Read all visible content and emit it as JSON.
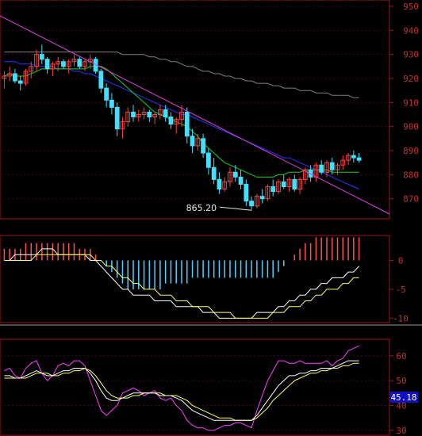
{
  "colors": {
    "background": "#000000",
    "frame": "#a01818",
    "axis_text": "#c83030",
    "candle_up": "#ff4040",
    "candle_down": "#40e0ff",
    "trendline": "#e040e0",
    "ma_short": "#19d219",
    "ma_mid": "#2a36ff",
    "ma_long": "#808080",
    "macd_pos": "#ff5050",
    "macd_neg": "#50d0ff",
    "macd_line1": "#ffffff",
    "macd_line2": "#ffff60",
    "kdj_k": "#ffffff",
    "kdj_d": "#ffff60",
    "kdj_j": "#ff40ff",
    "badge_bg": "#1010c0"
  },
  "price_panel": {
    "y_ticks": [
      "950",
      "940",
      "930",
      "920",
      "910",
      "900",
      "890",
      "880",
      "870"
    ],
    "low_marker_label": "865.20",
    "ylim": [
      860,
      950
    ]
  },
  "macd_panel": {
    "y_ticks": [
      "0",
      "-5",
      "-10"
    ]
  },
  "kdj_panel": {
    "y_ticks": [
      "60",
      "50",
      "40",
      "30"
    ],
    "current_value": "45.18"
  },
  "chart_data": {
    "type": "candlestick",
    "ylabel": "",
    "candles": [
      [
        920,
        923,
        916,
        921
      ],
      [
        921,
        925,
        919,
        922
      ],
      [
        922,
        924,
        918,
        919
      ],
      [
        919,
        921,
        915,
        918
      ],
      [
        918,
        924,
        917,
        923
      ],
      [
        923,
        927,
        920,
        925
      ],
      [
        925,
        932,
        923,
        930
      ],
      [
        930,
        934,
        926,
        928
      ],
      [
        928,
        929,
        922,
        924
      ],
      [
        924,
        927,
        921,
        926
      ],
      [
        926,
        929,
        923,
        927
      ],
      [
        927,
        928,
        924,
        925
      ],
      [
        925,
        928,
        922,
        927
      ],
      [
        927,
        930,
        925,
        928
      ],
      [
        928,
        929,
        924,
        925
      ],
      [
        925,
        928,
        923,
        927
      ],
      [
        927,
        930,
        924,
        928
      ],
      [
        928,
        929,
        922,
        923
      ],
      [
        923,
        924,
        914,
        916
      ],
      [
        916,
        918,
        908,
        911
      ],
      [
        911,
        914,
        905,
        908
      ],
      [
        908,
        910,
        896,
        899
      ],
      [
        899,
        904,
        895,
        902
      ],
      [
        902,
        908,
        900,
        906
      ],
      [
        906,
        909,
        902,
        904
      ],
      [
        904,
        907,
        902,
        905
      ],
      [
        905,
        908,
        903,
        906
      ],
      [
        906,
        907,
        902,
        904
      ],
      [
        904,
        906,
        901,
        905
      ],
      [
        905,
        909,
        903,
        907
      ],
      [
        907,
        909,
        902,
        904
      ],
      [
        904,
        906,
        899,
        901
      ],
      [
        901,
        904,
        897,
        903
      ],
      [
        903,
        909,
        900,
        906
      ],
      [
        906,
        908,
        893,
        896
      ],
      [
        896,
        899,
        889,
        892
      ],
      [
        892,
        897,
        890,
        895
      ],
      [
        895,
        897,
        887,
        889
      ],
      [
        889,
        891,
        880,
        883
      ],
      [
        883,
        887,
        876,
        878
      ],
      [
        878,
        881,
        872,
        874
      ],
      [
        874,
        879,
        873,
        877
      ],
      [
        877,
        883,
        875,
        881
      ],
      [
        881,
        884,
        877,
        879
      ],
      [
        879,
        882,
        874,
        876
      ],
      [
        876,
        878,
        867,
        869
      ],
      [
        869,
        871,
        865.2,
        867
      ],
      [
        867,
        872,
        866,
        871
      ],
      [
        871,
        874,
        868,
        870
      ],
      [
        870,
        876,
        869,
        875
      ],
      [
        875,
        878,
        871,
        873
      ],
      [
        873,
        878,
        872,
        877
      ],
      [
        877,
        880,
        874,
        875
      ],
      [
        875,
        879,
        873,
        878
      ],
      [
        878,
        880,
        873,
        874
      ],
      [
        874,
        879,
        872,
        878
      ],
      [
        878,
        883,
        876,
        882
      ],
      [
        882,
        884,
        877,
        879
      ],
      [
        879,
        885,
        877,
        884
      ],
      [
        884,
        886,
        880,
        881
      ],
      [
        881,
        886,
        879,
        885
      ],
      [
        885,
        887,
        880,
        882
      ],
      [
        882,
        885,
        880,
        884
      ],
      [
        884,
        888,
        882,
        886
      ],
      [
        886,
        889,
        884,
        888
      ],
      [
        888,
        890,
        885,
        887
      ],
      [
        887,
        889,
        885,
        886
      ]
    ],
    "ma_short": [
      921,
      922,
      921,
      921,
      921,
      922,
      923,
      924,
      924,
      924,
      924,
      924,
      924,
      924,
      924,
      924,
      925,
      925,
      925,
      924,
      922,
      920,
      918,
      916,
      914,
      912,
      910,
      908,
      906,
      905,
      904,
      903,
      902,
      901,
      900,
      898,
      896,
      893,
      891,
      889,
      887,
      885,
      884,
      883,
      882,
      881,
      880,
      879,
      879,
      879,
      879,
      880,
      880,
      881,
      881,
      881,
      882,
      882,
      882,
      882,
      882,
      881,
      881,
      881,
      881,
      881,
      881
    ],
    "ma_mid": [
      927,
      927,
      927,
      926,
      926,
      926,
      925,
      925,
      925,
      925,
      924,
      924,
      924,
      923,
      923,
      922,
      922,
      921,
      920,
      919,
      918,
      917,
      916,
      915,
      914,
      913,
      912,
      911,
      910,
      909,
      908,
      907,
      906,
      905,
      905,
      904,
      903,
      902,
      901,
      900,
      899,
      898,
      897,
      896,
      895,
      894,
      893,
      892,
      891,
      890,
      889,
      888,
      887,
      887,
      886,
      885,
      884,
      883,
      882,
      881,
      880,
      879,
      878,
      877,
      876,
      875,
      874
    ],
    "ma_long": [
      931,
      931,
      931,
      931,
      931,
      931,
      931,
      931,
      931,
      931,
      931,
      931,
      931,
      931,
      931,
      931,
      931,
      931,
      931,
      931,
      931,
      931,
      930,
      930,
      930,
      930,
      930,
      929,
      929,
      928,
      928,
      927,
      927,
      926,
      925,
      925,
      924,
      923,
      923,
      922,
      922,
      921,
      921,
      920,
      920,
      919,
      919,
      918,
      918,
      918,
      917,
      917,
      916,
      916,
      916,
      915,
      915,
      915,
      914,
      914,
      914,
      913,
      913,
      913,
      913,
      912,
      912
    ],
    "macd_hist": [
      2,
      2,
      2,
      2,
      3,
      3,
      3,
      3,
      3,
      3,
      3,
      3,
      3,
      3,
      2,
      2,
      2,
      1,
      0,
      -1,
      -2,
      -3,
      -4,
      -5,
      -5,
      -5,
      -5,
      -5,
      -5,
      -5,
      -4,
      -4,
      -4,
      -4,
      -4,
      -3,
      -3,
      -3,
      -3,
      -3,
      -3,
      -3,
      -3,
      -3,
      -3,
      -3,
      -3,
      -3,
      -3,
      -3,
      -3,
      -2,
      -1,
      0,
      1,
      2,
      3,
      3,
      4,
      4,
      4,
      4,
      4,
      4,
      4,
      4,
      4
    ],
    "macd_dif": [
      0,
      0,
      1,
      1,
      1,
      1,
      1,
      2,
      2,
      2,
      1,
      1,
      1,
      1,
      1,
      1,
      0,
      0,
      -1,
      -2,
      -3,
      -4,
      -5,
      -5,
      -6,
      -6,
      -6,
      -6,
      -7,
      -7,
      -7,
      -7,
      -8,
      -8,
      -8,
      -8,
      -8,
      -9,
      -9,
      -9,
      -10,
      -10,
      -10,
      -10,
      -10,
      -10,
      -10,
      -9,
      -9,
      -9,
      -9,
      -8,
      -8,
      -7,
      -7,
      -6,
      -6,
      -5,
      -5,
      -4,
      -4,
      -3,
      -3,
      -3,
      -2,
      -2,
      -1
    ],
    "macd_dea": [
      0,
      0,
      0,
      0,
      0,
      0,
      1,
      1,
      1,
      1,
      1,
      1,
      1,
      1,
      1,
      1,
      1,
      0,
      0,
      -1,
      -1,
      -2,
      -3,
      -3,
      -4,
      -4,
      -5,
      -5,
      -5,
      -6,
      -6,
      -6,
      -7,
      -7,
      -7,
      -8,
      -8,
      -8,
      -8,
      -9,
      -9,
      -9,
      -9,
      -10,
      -10,
      -10,
      -10,
      -10,
      -10,
      -10,
      -9,
      -9,
      -9,
      -8,
      -8,
      -8,
      -7,
      -7,
      -6,
      -6,
      -5,
      -5,
      -5,
      -4,
      -4,
      -3,
      -3
    ],
    "kdj_k": [
      52,
      52,
      51,
      51,
      52,
      53,
      54,
      53,
      52,
      52,
      53,
      54,
      54,
      55,
      55,
      55,
      53,
      50,
      46,
      43,
      42,
      42,
      43,
      44,
      45,
      45,
      45,
      45,
      45,
      44,
      44,
      44,
      43,
      42,
      40,
      38,
      37,
      36,
      35,
      34,
      34,
      34,
      34,
      34,
      34,
      34,
      34,
      36,
      39,
      42,
      45,
      48,
      50,
      52,
      52,
      53,
      53,
      54,
      54,
      55,
      55,
      55,
      56,
      57,
      58,
      58,
      58
    ],
    "kdj_d": [
      51,
      51,
      51,
      51,
      51,
      52,
      53,
      53,
      53,
      52,
      52,
      53,
      53,
      54,
      54,
      55,
      54,
      52,
      49,
      46,
      44,
      43,
      43,
      43,
      44,
      44,
      45,
      45,
      45,
      45,
      44,
      44,
      44,
      43,
      42,
      40,
      39,
      38,
      37,
      36,
      35,
      35,
      35,
      34,
      34,
      34,
      34,
      35,
      37,
      39,
      42,
      44,
      46,
      48,
      50,
      51,
      52,
      53,
      53,
      54,
      54,
      55,
      55,
      56,
      56,
      57,
      57
    ],
    "kdj_j": [
      54,
      55,
      52,
      51,
      55,
      57,
      58,
      53,
      50,
      52,
      56,
      57,
      56,
      58,
      58,
      56,
      50,
      44,
      38,
      36,
      38,
      40,
      45,
      46,
      47,
      46,
      44,
      45,
      46,
      43,
      42,
      43,
      40,
      38,
      34,
      32,
      31,
      31,
      30,
      30,
      31,
      32,
      32,
      33,
      33,
      32,
      31,
      38,
      44,
      50,
      54,
      58,
      58,
      57,
      57,
      58,
      57,
      57,
      57,
      57,
      58,
      56,
      58,
      59,
      62,
      63,
      64
    ]
  }
}
